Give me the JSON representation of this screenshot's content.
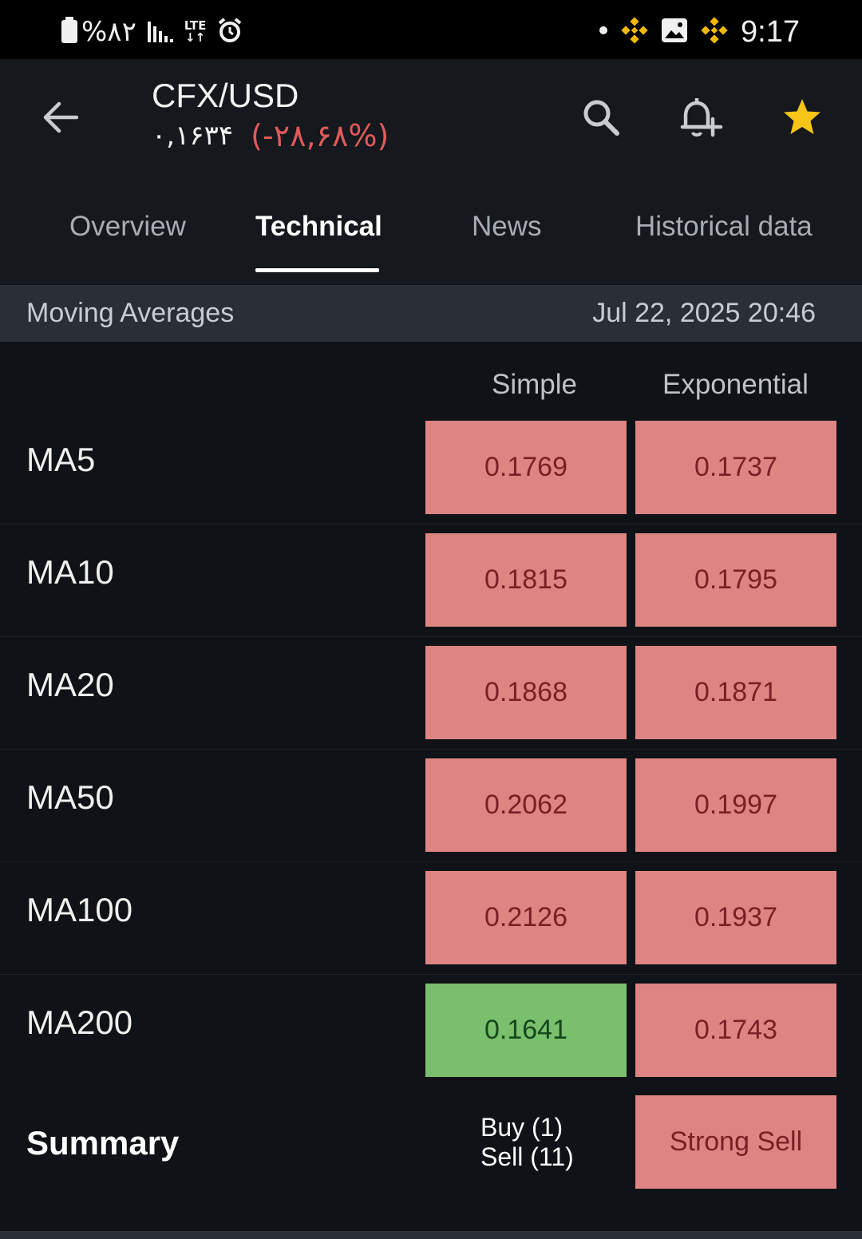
{
  "status_bar": {
    "battery": "%۸۲",
    "network": "LTE",
    "time": "9:17"
  },
  "header": {
    "title": "CFX/USD",
    "price": "۰,۱۶۳۴",
    "change": "(-۲۸,۶۸%)"
  },
  "tabs": [
    {
      "label": "Overview"
    },
    {
      "label": "Technical"
    },
    {
      "label": "News"
    },
    {
      "label": "Historical data"
    }
  ],
  "section": {
    "title": "Moving Averages",
    "date": "Jul 22, 2025 20:46"
  },
  "columns": {
    "simple": "Simple",
    "exponential": "Exponential"
  },
  "rows": [
    {
      "label": "MA5",
      "simple": "0.1769",
      "exponential": "0.1737"
    },
    {
      "label": "MA10",
      "simple": "0.1815",
      "exponential": "0.1795"
    },
    {
      "label": "MA20",
      "simple": "0.1868",
      "exponential": "0.1871"
    },
    {
      "label": "MA50",
      "simple": "0.2062",
      "exponential": "0.1997"
    },
    {
      "label": "MA100",
      "simple": "0.2126",
      "exponential": "0.1937"
    },
    {
      "label": "MA200",
      "simple": "0.1641",
      "exponential": "0.1743"
    }
  ],
  "summary": {
    "label": "Summary",
    "buy": "Buy (1)",
    "sell": "Sell (11)",
    "verdict": "Strong Sell"
  },
  "colors": {
    "sell": "#de8584",
    "buy": "#79bf6e",
    "negative_change": "#e05a5a",
    "star": "#f5c518",
    "binance": "#f0b90b"
  }
}
